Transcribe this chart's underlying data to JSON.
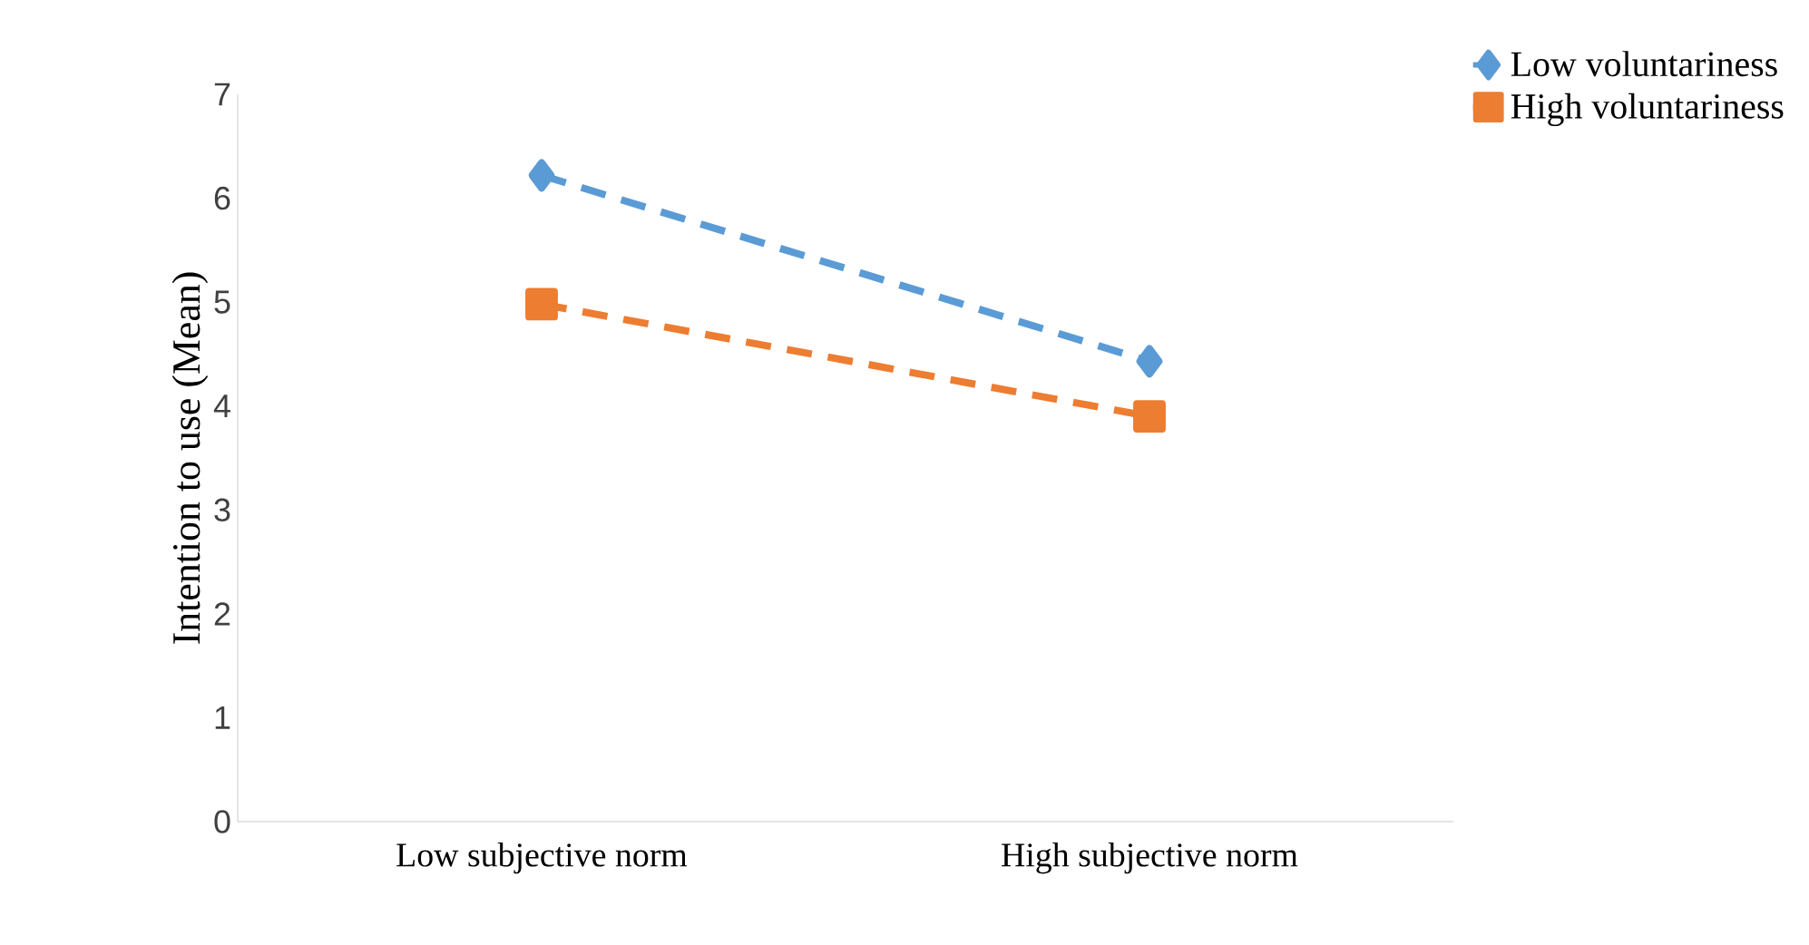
{
  "chart_data": {
    "type": "line",
    "ylabel": "Intention to use (Mean)",
    "categories": [
      "Low subjective norm",
      "High subjective norm"
    ],
    "series": [
      {
        "name": "Low voluntariness",
        "color": "#5b9bd5",
        "values": [
          6.22,
          4.43
        ],
        "marker": "diamond"
      },
      {
        "name": "High voluntariness",
        "color": "#ed7d31",
        "values": [
          4.98,
          3.9
        ],
        "marker": "square"
      }
    ],
    "ylim": [
      0,
      7
    ],
    "yticks": [
      0,
      1,
      2,
      3,
      4,
      5,
      6,
      7
    ],
    "grid": false,
    "legend": "top right",
    "line_style": "dashed"
  }
}
